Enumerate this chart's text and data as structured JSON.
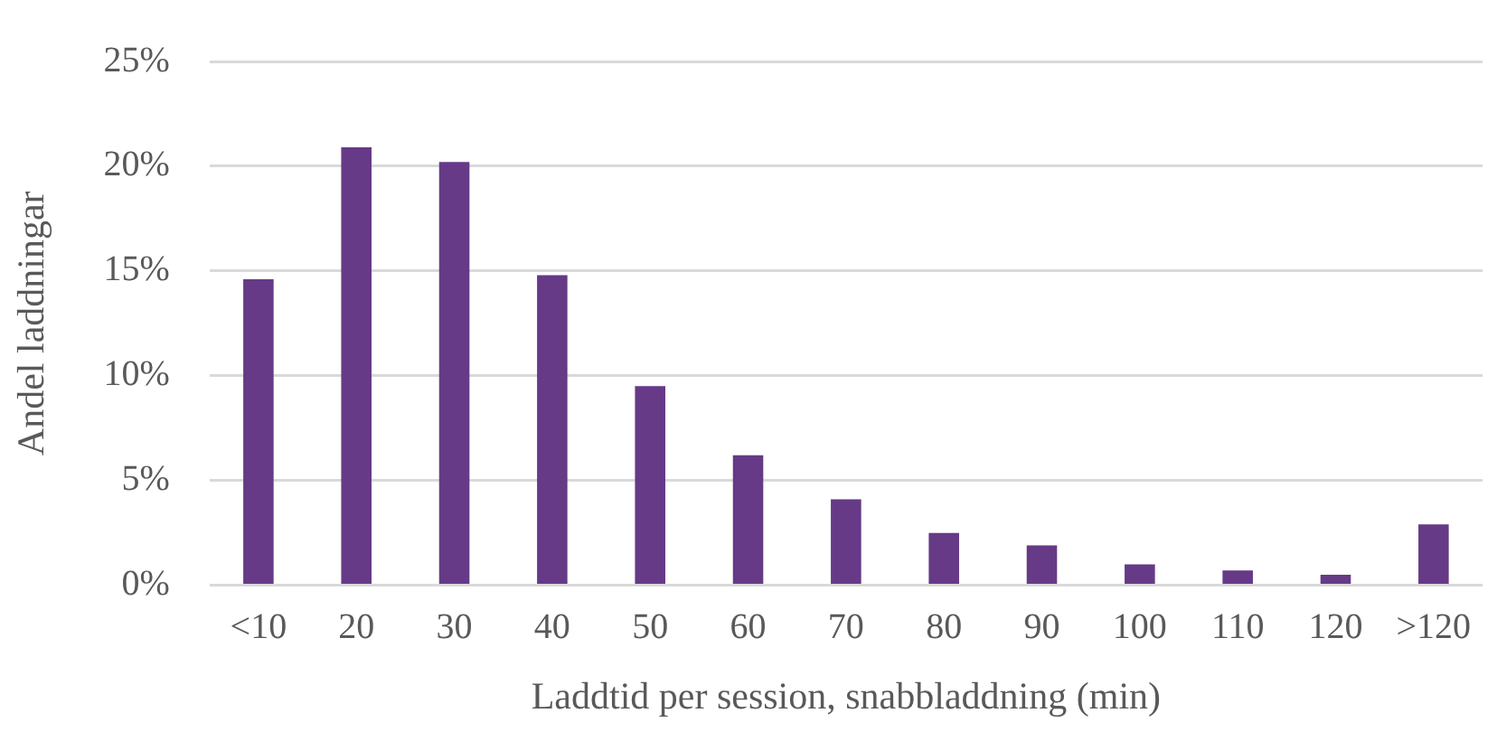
{
  "chart_data": {
    "type": "bar",
    "xlabel": "Laddtid per session, snabbladdning (min)",
    "ylabel": "Andel laddningar",
    "categories": [
      "<10",
      "20",
      "30",
      "40",
      "50",
      "60",
      "70",
      "80",
      "90",
      "100",
      "110",
      "120",
      ">120"
    ],
    "values": [
      14.6,
      20.9,
      20.2,
      14.8,
      9.5,
      6.2,
      4.1,
      2.5,
      1.9,
      1.0,
      0.7,
      0.5,
      2.9
    ],
    "color": "#663a86",
    "ylim": [
      0,
      25
    ],
    "yticks": [
      {
        "value": 0,
        "label": "0%"
      },
      {
        "value": 5,
        "label": "5%"
      },
      {
        "value": 10,
        "label": "10%"
      },
      {
        "value": 15,
        "label": "15%"
      },
      {
        "value": 20,
        "label": "20%"
      },
      {
        "value": 25,
        "label": "25%"
      }
    ],
    "grid": "y"
  }
}
